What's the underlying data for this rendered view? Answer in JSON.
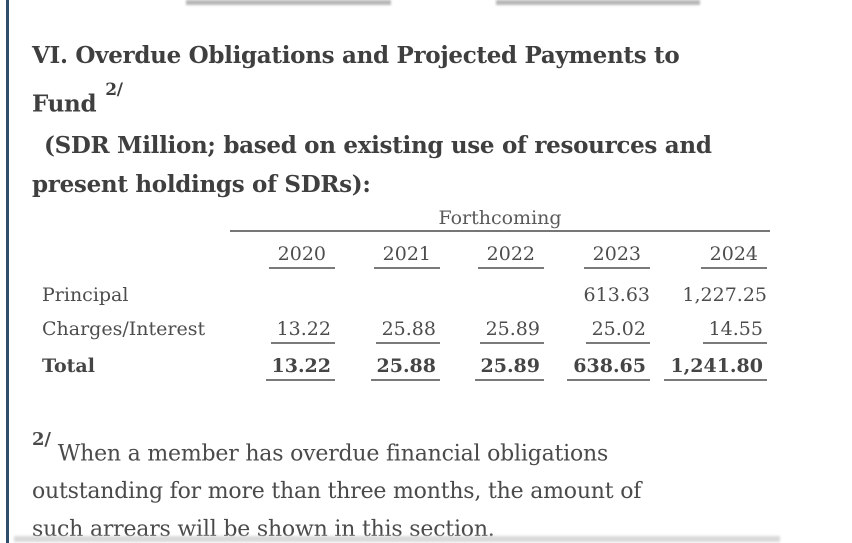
{
  "colors": {
    "accent_left_border": "#2e4d68",
    "heading_text": "#3f3f3f",
    "body_text": "#4a4a4a",
    "rule_gray": "#767676"
  },
  "heading": {
    "lines": [
      "VI. Overdue Obligations and Projected Payments to",
      "Fund"
    ],
    "footnote_ref": "2/"
  },
  "subtitle": {
    "lines": [
      "(SDR Million; based on existing use of resources and",
      "present holdings of SDRs):"
    ]
  },
  "table": {
    "spanner": "Forthcoming",
    "columns": [
      "2020",
      "2021",
      "2022",
      "2023",
      "2024"
    ],
    "rows": [
      {
        "label": "Principal",
        "values": [
          "",
          "",
          "",
          "613.63",
          "1,227.25"
        ],
        "underline": false,
        "bold": false
      },
      {
        "label": "Charges/Interest",
        "values": [
          "13.22",
          "25.88",
          "25.89",
          "25.02",
          "14.55"
        ],
        "underline": true,
        "bold": false
      },
      {
        "label": "Total",
        "values": [
          "13.22",
          "25.88",
          "25.89",
          "638.65",
          "1,241.80"
        ],
        "underline": true,
        "bold": true
      }
    ]
  },
  "footnote": {
    "marker": "2/",
    "lines": [
      "When a member has overdue financial obligations",
      "outstanding for more than three months, the amount of",
      "such arrears will be shown in this section."
    ]
  }
}
